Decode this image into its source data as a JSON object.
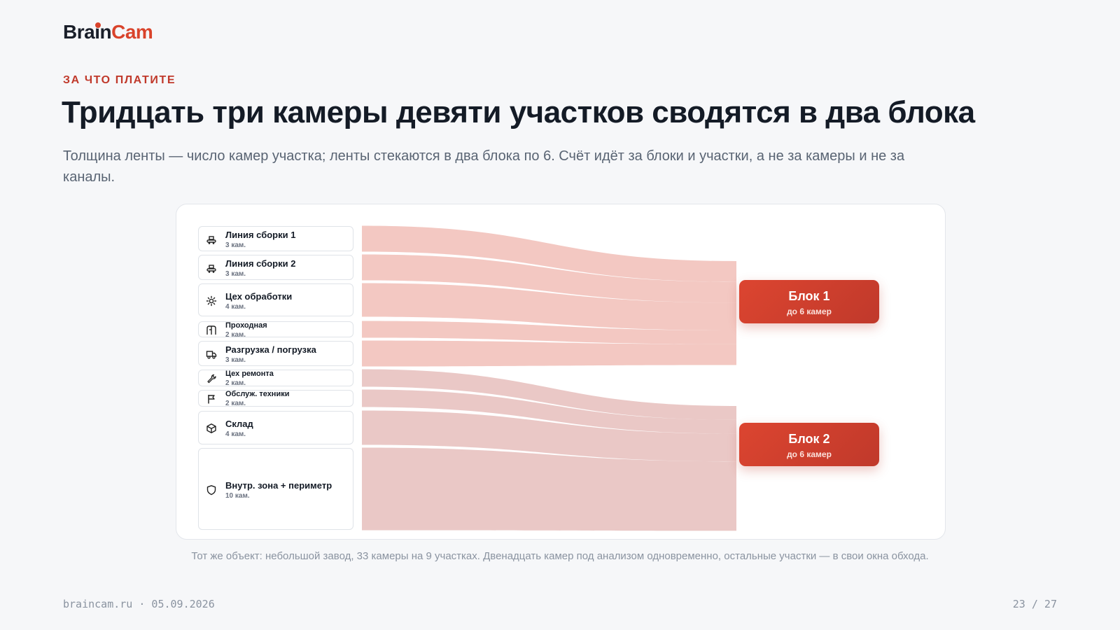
{
  "brand": {
    "logo_part1": "Bra",
    "logo_i": "i",
    "logo_part2": "n",
    "logo_part3": "Cam"
  },
  "header": {
    "eyebrow": "ЗА ЧТО ПЛАТИТЕ",
    "title": "Тридцать три камеры девяти участков сводятся в два блока",
    "subtitle": "Толщина ленты — число камер участка; ленты стекаются в два блока по 6. Счёт идёт за блоки и участки, а не за камеры и не за каналы."
  },
  "diagram": {
    "sources": [
      {
        "name": "Линия сборки 1",
        "count": "3 кам.",
        "cameras": 3,
        "icon": "conveyor-icon",
        "block": 0
      },
      {
        "name": "Линия сборки 2",
        "count": "3 кам.",
        "cameras": 3,
        "icon": "conveyor-icon",
        "block": 0
      },
      {
        "name": "Цех обработки",
        "count": "4 кам.",
        "cameras": 4,
        "icon": "gear-icon",
        "block": 0
      },
      {
        "name": "Проходная",
        "count": "2 кам.",
        "cameras": 2,
        "icon": "turnstile-icon",
        "block": 0
      },
      {
        "name": "Разгрузка / погрузка",
        "count": "3 кам.",
        "cameras": 3,
        "icon": "truck-icon",
        "block": 0
      },
      {
        "name": "Цех ремонта",
        "count": "2 кам.",
        "cameras": 2,
        "icon": "wrench-icon",
        "block": 1
      },
      {
        "name": "Обслуж. техники",
        "count": "2 кам.",
        "cameras": 2,
        "icon": "flag-icon",
        "block": 1
      },
      {
        "name": "Склад",
        "count": "4 кам.",
        "cameras": 4,
        "icon": "box-icon",
        "block": 1
      },
      {
        "name": "Внутр. зона + периметр",
        "count": "10 кам.",
        "cameras": 10,
        "icon": "shield-icon",
        "block": 1
      }
    ],
    "blocks": [
      {
        "name": "Блок 1",
        "capacity": "до 6 камер",
        "cameras": 6
      },
      {
        "name": "Блок 2",
        "capacity": "до 6 камер",
        "cameras": 6
      }
    ],
    "colors": {
      "block1_flow": "#efb3aa",
      "block2_flow": "#e2b3b0",
      "block_fill": "#d23f2c",
      "accent": "#c0392b"
    }
  },
  "caption": "Тот же объект: небольшой завод, 33 камеры на 9 участках. Двенадцать камер под анализом одновременно, остальные участки — в свои окна обхода.",
  "footer": {
    "left": "braincam.ru · 05.09.2026",
    "page": "23 / 27"
  }
}
